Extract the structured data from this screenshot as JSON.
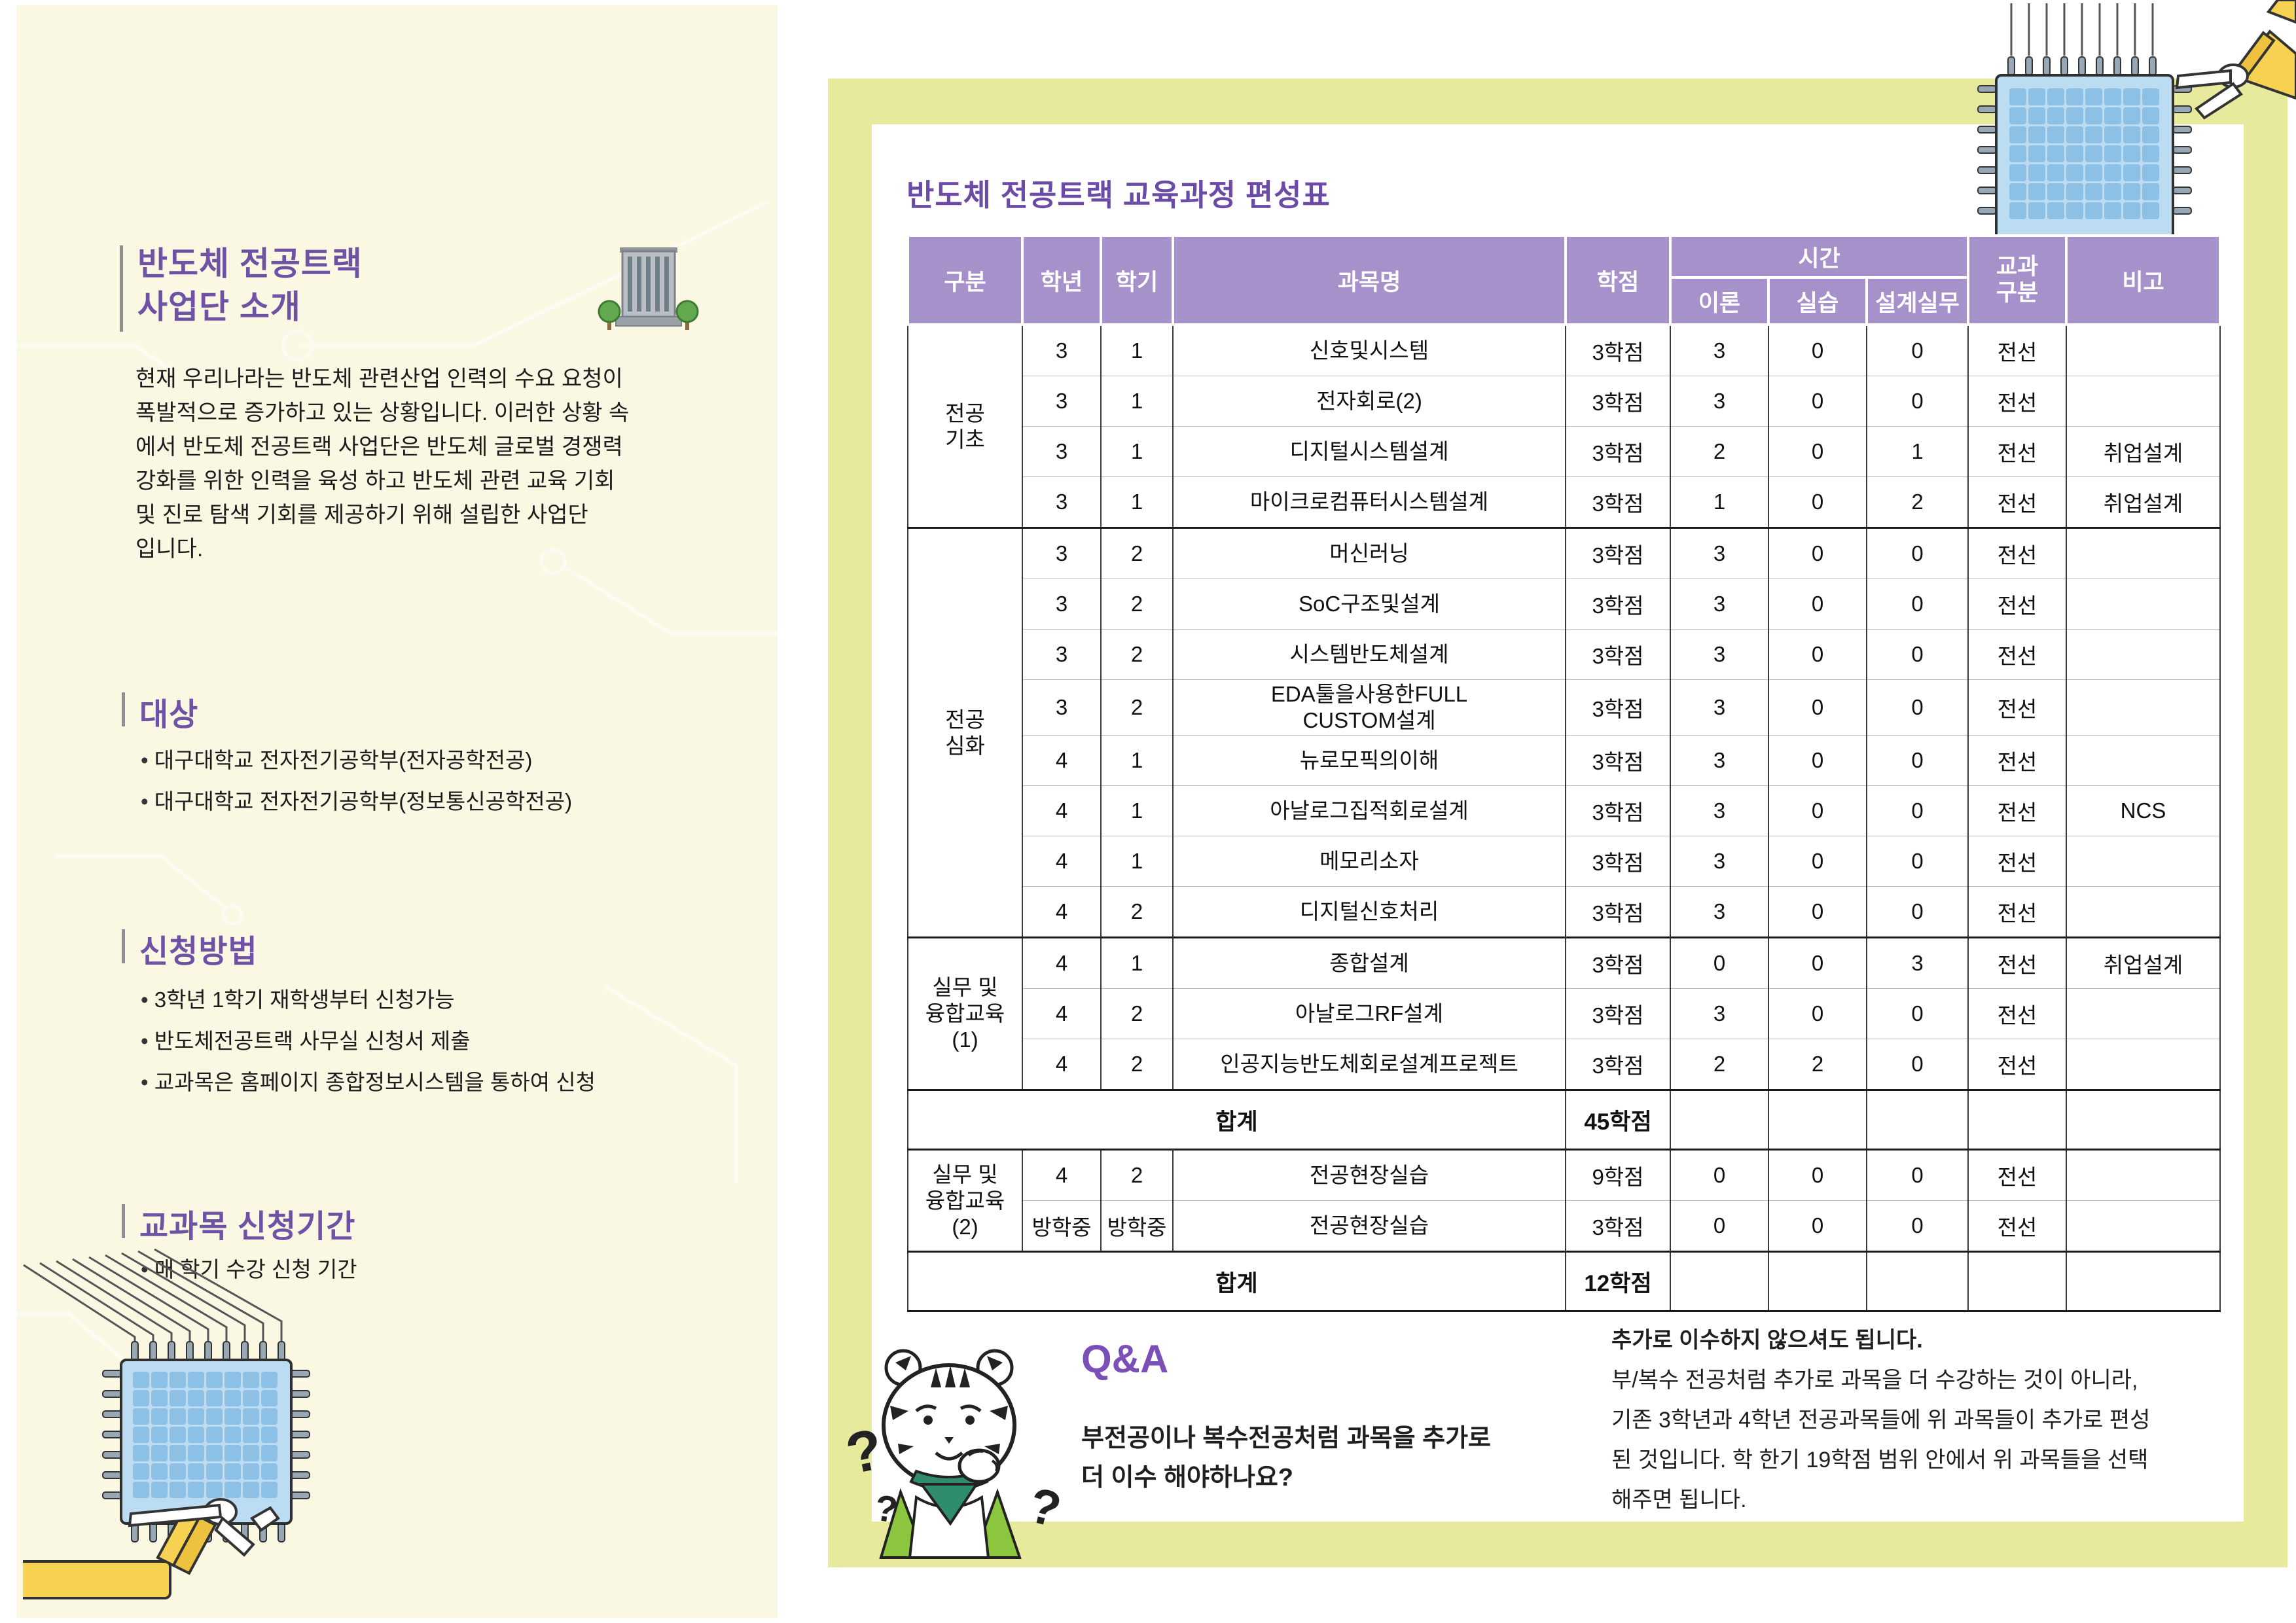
{
  "colors": {
    "cream_background": "#faf7e2",
    "frame_chartreuse": "#e7ea9c",
    "accent_purple": "#6f51a5",
    "table_header_purple": "#a691cb",
    "chip_blue": "#bcdcf2",
    "arm_yellow": "#f7d252"
  },
  "left_panel": {
    "heading": {
      "line1": "반도체 전공트랙",
      "line2": "사업단 소개"
    },
    "building_icon": "building-with-trees",
    "intro_lines": [
      "현재 우리나라는 반도체 관련산업 인력의 수요 요청이",
      "폭발적으로 증가하고 있는 상황입니다. 이러한 상황 속",
      "에서 반도체 전공트랙 사업단은 반도체 글로벌 경쟁력",
      "강화를 위한 인력을 육성 하고 반도체 관련 교육 기회",
      "및 진로 탐색 기회를 제공하기 위해 설립한 사업단",
      "입니다."
    ],
    "sections": [
      {
        "heading": "대상",
        "bullets": [
          "대구대학교 전자전기공학부(전자공학전공)",
          "대구대학교 전자전기공학부(정보통신공학전공)"
        ]
      },
      {
        "heading": "신청방법",
        "bullets": [
          "3학년 1학기 재학생부터 신청가능",
          "반도체전공트랙 사무실 신청서 제출",
          "교과목은 홈페이지 종합정보시스템을 통하여 신청"
        ]
      },
      {
        "heading": "교과목 신청기간",
        "bullets": [
          "매 학기 수강 신청 기간"
        ]
      }
    ]
  },
  "right_panel": {
    "table_title": "반도체 전공트랙 교육과정 편성표",
    "table": {
      "headers": {
        "gubun": "구분",
        "year": "학년",
        "sem": "학기",
        "subject": "과목명",
        "credit": "학점",
        "time": "시간",
        "theory": "이론",
        "practice": "실습",
        "design": "설계실무",
        "course_type": "교과\n구분",
        "note": "비고"
      },
      "sections": [
        {
          "type": "group",
          "name": "전공\n기초",
          "rows": [
            {
              "year": "3",
              "sem": "1",
              "subject": "신호및시스템",
              "credit": "3학점",
              "theory": "3",
              "practice": "0",
              "design": "0",
              "course_type": "전선",
              "note": ""
            },
            {
              "year": "3",
              "sem": "1",
              "subject": "전자회로(2)",
              "credit": "3학점",
              "theory": "3",
              "practice": "0",
              "design": "0",
              "course_type": "전선",
              "note": ""
            },
            {
              "year": "3",
              "sem": "1",
              "subject": "디지털시스템설계",
              "credit": "3학점",
              "theory": "2",
              "practice": "0",
              "design": "1",
              "course_type": "전선",
              "note": "취업설계"
            },
            {
              "year": "3",
              "sem": "1",
              "subject": "마이크로컴퓨터시스템설계",
              "credit": "3학점",
              "theory": "1",
              "practice": "0",
              "design": "2",
              "course_type": "전선",
              "note": "취업설계"
            }
          ]
        },
        {
          "type": "group",
          "name": "전공\n심화",
          "rows": [
            {
              "year": "3",
              "sem": "2",
              "subject": "머신러닝",
              "credit": "3학점",
              "theory": "3",
              "practice": "0",
              "design": "0",
              "course_type": "전선",
              "note": ""
            },
            {
              "year": "3",
              "sem": "2",
              "subject": "SoC구조및설계",
              "credit": "3학점",
              "theory": "3",
              "practice": "0",
              "design": "0",
              "course_type": "전선",
              "note": ""
            },
            {
              "year": "3",
              "sem": "2",
              "subject": "시스템반도체설계",
              "credit": "3학점",
              "theory": "3",
              "practice": "0",
              "design": "0",
              "course_type": "전선",
              "note": ""
            },
            {
              "year": "3",
              "sem": "2",
              "subject": "EDA툴을사용한FULL\nCUSTOM설계",
              "credit": "3학점",
              "theory": "3",
              "practice": "0",
              "design": "0",
              "course_type": "전선",
              "note": ""
            },
            {
              "year": "4",
              "sem": "1",
              "subject": "뉴로모픽의이해",
              "credit": "3학점",
              "theory": "3",
              "practice": "0",
              "design": "0",
              "course_type": "전선",
              "note": ""
            },
            {
              "year": "4",
              "sem": "1",
              "subject": "아날로그집적회로설계",
              "credit": "3학점",
              "theory": "3",
              "practice": "0",
              "design": "0",
              "course_type": "전선",
              "note": "NCS"
            },
            {
              "year": "4",
              "sem": "1",
              "subject": "메모리소자",
              "credit": "3학점",
              "theory": "3",
              "practice": "0",
              "design": "0",
              "course_type": "전선",
              "note": ""
            },
            {
              "year": "4",
              "sem": "2",
              "subject": "디지털신호처리",
              "credit": "3학점",
              "theory": "3",
              "practice": "0",
              "design": "0",
              "course_type": "전선",
              "note": ""
            }
          ]
        },
        {
          "type": "group",
          "name": "실무 및\n융합교육\n(1)",
          "rows": [
            {
              "year": "4",
              "sem": "1",
              "subject": "종합설계",
              "credit": "3학점",
              "theory": "0",
              "practice": "0",
              "design": "3",
              "course_type": "전선",
              "note": "취업설계"
            },
            {
              "year": "4",
              "sem": "2",
              "subject": "아날로그RF설계",
              "credit": "3학점",
              "theory": "3",
              "practice": "0",
              "design": "0",
              "course_type": "전선",
              "note": ""
            },
            {
              "year": "4",
              "sem": "2",
              "subject": "인공지능반도체회로설계프로젝트",
              "credit": "3학점",
              "theory": "2",
              "practice": "2",
              "design": "0",
              "course_type": "전선",
              "note": ""
            }
          ]
        },
        {
          "type": "total",
          "label": "합계",
          "credit": "45학점"
        },
        {
          "type": "group",
          "name": "실무 및\n융합교육\n(2)",
          "rows": [
            {
              "year": "4",
              "sem": "2",
              "subject": "전공현장실습",
              "credit": "9학점",
              "theory": "0",
              "practice": "0",
              "design": "0",
              "course_type": "전선",
              "note": ""
            },
            {
              "year": "방학중",
              "sem": "방학중",
              "subject": "전공현장실습",
              "credit": "3학점",
              "theory": "0",
              "practice": "0",
              "design": "0",
              "course_type": "전선",
              "note": ""
            }
          ]
        },
        {
          "type": "total",
          "label": "합계",
          "credit": "12학점"
        }
      ]
    },
    "qa": {
      "label": "Q&A",
      "mascot": "tiger-mascot",
      "question_lines": [
        "부전공이나 복수전공처럼 과목을 추가로",
        "더 이수 해야하나요?"
      ],
      "answer_bold": "추가로 이수하지 않으셔도 됩니다.",
      "answer_lines": [
        "부/복수 전공처럼 추가로 과목을 더 수강하는 것이 아니라,",
        "기존 3학년과 4학년 전공과목들에 위 과목들이 추가로 편성",
        "된 것입니다. 학 한기 19학점 범위 안에서 위 과목들을 선택",
        "해주면 됩니다."
      ]
    }
  }
}
